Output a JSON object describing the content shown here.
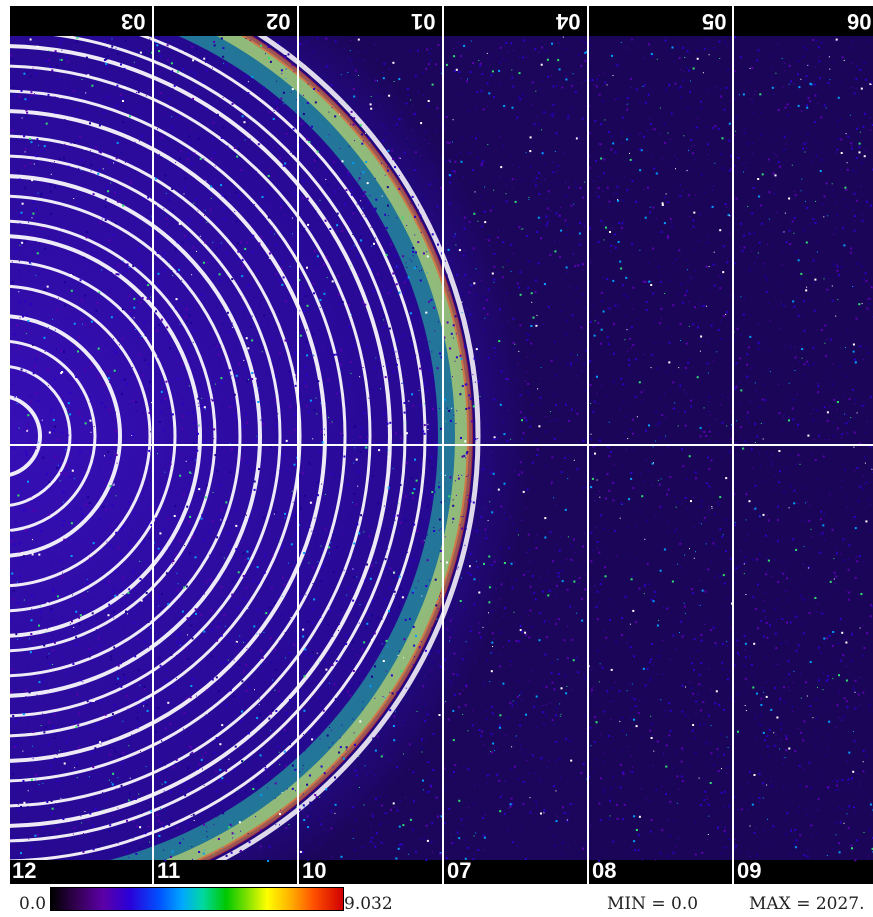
{
  "panels": {
    "top": [
      "03",
      "02",
      "01",
      "04",
      "05",
      "06"
    ],
    "bottom": [
      "12",
      "11",
      "10",
      "07",
      "08",
      "09"
    ]
  },
  "colors": {
    "background": "#000000",
    "noise": [
      "#2b00c8",
      "#5a00b0",
      "#1a0090",
      "#00a0ff",
      "#30e070",
      "#ffffff"
    ],
    "ring": "#ffffff",
    "panel_label": "#ffffff"
  },
  "scale": {
    "min_label": "0.0",
    "max_label": "9.032",
    "min_readout": "MIN = 0.0",
    "max_readout": "MAX = 2027."
  }
}
